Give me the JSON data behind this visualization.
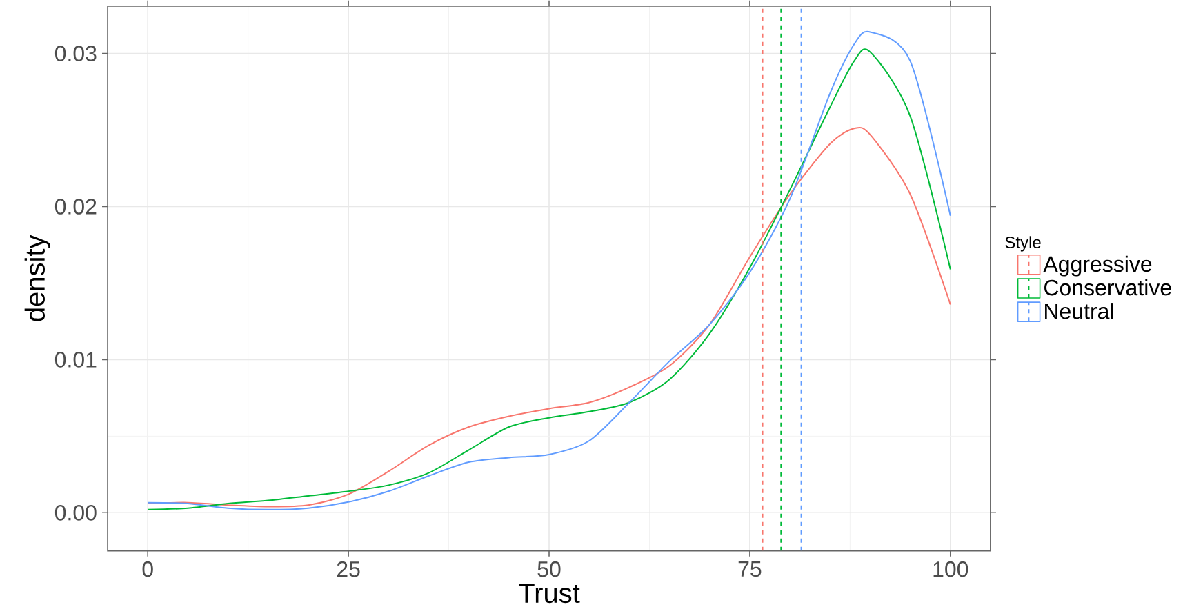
{
  "chart_data": {
    "type": "line",
    "xlabel": "Trust",
    "ylabel": "density",
    "legend_title": "Style",
    "x": [
      0,
      5,
      10,
      15,
      20,
      25,
      30,
      35,
      40,
      45,
      50,
      55,
      60,
      65,
      70,
      75,
      80,
      85,
      88,
      90,
      95,
      100
    ],
    "series": [
      {
        "name": "Aggressive",
        "color": "#F8766D",
        "values": [
          0.0006,
          0.00066,
          0.0005,
          0.0004,
          0.0005,
          0.0012,
          0.0027,
          0.0044,
          0.0056,
          0.0063,
          0.0068,
          0.0072,
          0.0082,
          0.0096,
          0.0123,
          0.0167,
          0.0208,
          0.0241,
          0.0251,
          0.0247,
          0.0208,
          0.0136
        ]
      },
      {
        "name": "Conservative",
        "color": "#00BA38",
        "values": [
          0.0002,
          0.0003,
          0.0006,
          0.0008,
          0.0011,
          0.0014,
          0.0018,
          0.0026,
          0.0041,
          0.0056,
          0.0062,
          0.0066,
          0.0072,
          0.0087,
          0.0117,
          0.016,
          0.0211,
          0.0265,
          0.0295,
          0.0301,
          0.0259,
          0.0159
        ]
      },
      {
        "name": "Neutral",
        "color": "#619CFF",
        "values": [
          0.00066,
          0.0006,
          0.0003,
          0.0002,
          0.0003,
          0.0007,
          0.0014,
          0.0024,
          0.0033,
          0.0036,
          0.0038,
          0.0047,
          0.0072,
          0.0099,
          0.0123,
          0.0157,
          0.0205,
          0.0274,
          0.0306,
          0.0314,
          0.0295,
          0.0194
        ]
      }
    ],
    "ref_lines": [
      {
        "axis": "x",
        "value": 76.6,
        "color": "#F8766D",
        "line_style": "dashed"
      },
      {
        "axis": "x",
        "value": 78.9,
        "color": "#00BA38",
        "line_style": "dashed"
      },
      {
        "axis": "x",
        "value": 81.4,
        "color": "#619CFF",
        "line_style": "dashed"
      }
    ],
    "xlim": [
      -5,
      105
    ],
    "xticks": [
      0,
      25,
      50,
      75,
      100
    ],
    "ylim": [
      -0.0025,
      0.0331
    ],
    "yticks": [
      {
        "value": 0,
        "label": "0.00"
      },
      {
        "value": 0.01,
        "label": "0.01"
      },
      {
        "value": 0.02,
        "label": "0.02"
      },
      {
        "value": 0.03,
        "label": "0.03"
      }
    ],
    "grid": true,
    "legend": "right",
    "marker": "none",
    "line_style": "solid"
  }
}
